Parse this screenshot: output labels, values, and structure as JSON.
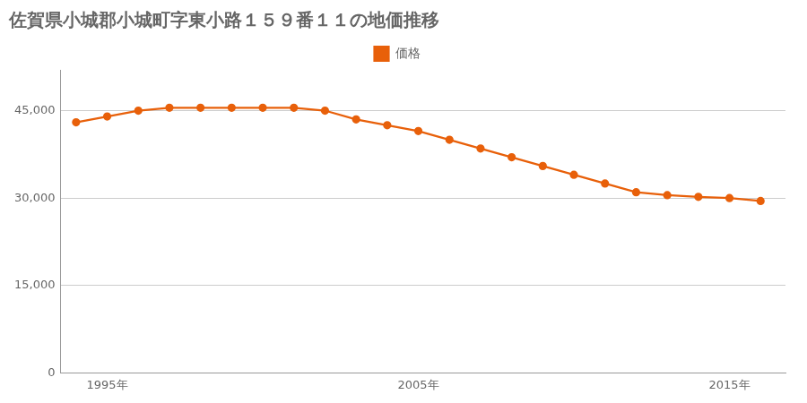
{
  "chart_data": {
    "type": "line",
    "title": "佐賀県小城郡小城町字東小路１５９番１１の地価推移",
    "x": [
      1994,
      1995,
      1996,
      1997,
      1998,
      1999,
      2000,
      2001,
      2002,
      2003,
      2004,
      2005,
      2006,
      2007,
      2008,
      2009,
      2010,
      2011,
      2012,
      2013,
      2014,
      2015,
      2016
    ],
    "series": [
      {
        "name": "価格",
        "color": "#e8600a",
        "marker": "circle",
        "values": [
          43000,
          44000,
          45000,
          45500,
          45500,
          45500,
          45500,
          45500,
          45000,
          43500,
          42500,
          41500,
          40000,
          38500,
          37000,
          35500,
          34000,
          32500,
          31000,
          30500,
          30200,
          30000,
          29500
        ]
      }
    ],
    "xlim": [
      1993.5,
      2016.8
    ],
    "xticks": [
      {
        "value": 1995,
        "label": "1995年"
      },
      {
        "value": 2005,
        "label": "2005年"
      },
      {
        "value": 2015,
        "label": "2015年"
      }
    ],
    "ylim": [
      0,
      52000
    ],
    "yticks": [
      0,
      {
        "value": 15000,
        "label": "15,000"
      },
      {
        "value": 30000,
        "label": "30,000"
      },
      {
        "value": 45000,
        "label": "45,000"
      }
    ],
    "grid": true,
    "legend": "top"
  }
}
